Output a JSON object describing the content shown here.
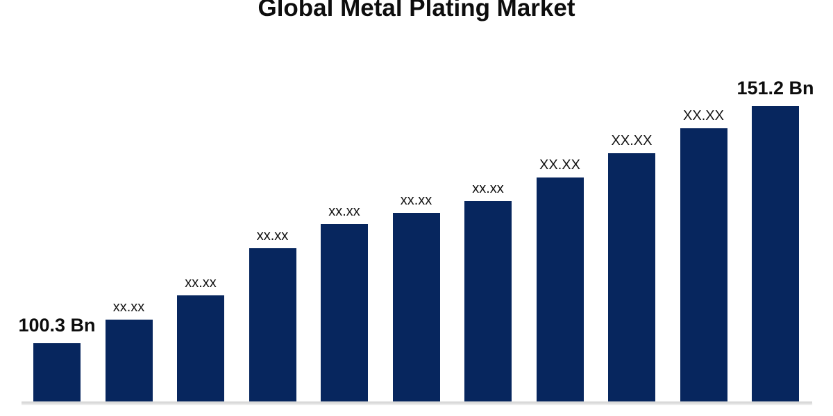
{
  "header": {
    "title": "Global Metal Plating Market"
  },
  "colors": {
    "bar": "#07265E",
    "title_text": "#0d0d0d",
    "label_text": "#141414",
    "axis_line": "#d9d9d9",
    "background": "#ffffff"
  },
  "chart_data": {
    "type": "bar",
    "title": "Global Metal Plating Market",
    "xlabel": "",
    "ylabel": "",
    "values": [
      100.3,
      105.4,
      110.6,
      120.7,
      125.9,
      128.3,
      130.8,
      135.9,
      141.1,
      146.4,
      151.2
    ],
    "data_labels": [
      "100.3 Bn",
      "xx.xx",
      "xx.xx",
      "xx.xx",
      "xx.xx",
      "xx.xx",
      "xx.xx",
      "XX.XX",
      "XX.XX",
      "XX.XX",
      "151.2 Bn"
    ],
    "label_emphasis": [
      "bold",
      "small",
      "small",
      "small",
      "small",
      "small",
      "small",
      "large",
      "large",
      "large",
      "bold"
    ],
    "ylim": [
      87.5,
      151.2
    ],
    "bar_color": "#07265E",
    "gridlines": false,
    "legend": "none",
    "x_tick_labels": "none",
    "y_axis_visible": false
  }
}
